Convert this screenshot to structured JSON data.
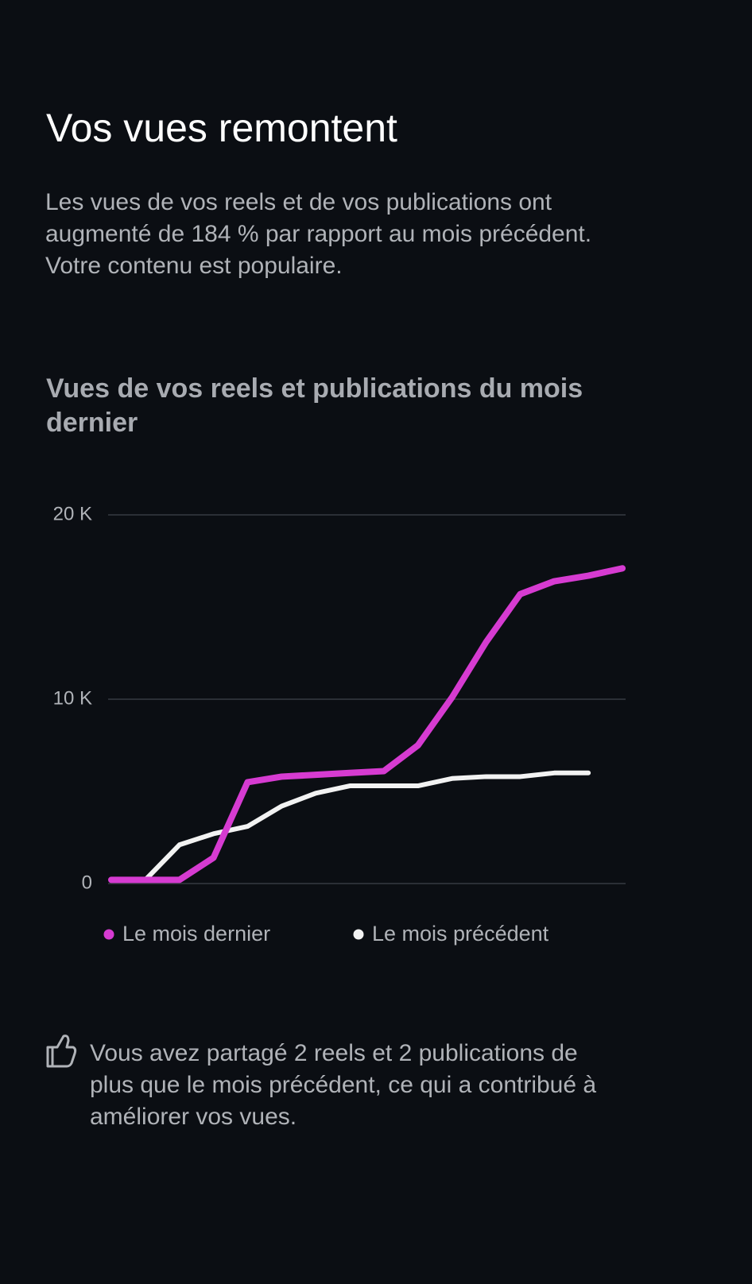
{
  "header": {
    "title": "Vos vues remontent",
    "description": [
      "Les vues de vos reels et de vos publications ont",
      "augmenté de 184 % par rapport au mois précédent.",
      "Votre contenu est populaire."
    ]
  },
  "chart_data": {
    "type": "line",
    "title": [
      "Vues de vos reels et publications du mois",
      "dernier"
    ],
    "categories": [
      null,
      null,
      null,
      null,
      null,
      null,
      null,
      null,
      null,
      null,
      null,
      null,
      null,
      null,
      null,
      null
    ],
    "series": [
      {
        "name": "Le mois dernier",
        "color": "#d63bd1",
        "values": [
          200,
          200,
          200,
          1400,
          5500,
          5800,
          5900,
          6000,
          6100,
          7500,
          10100,
          13100,
          15700,
          16400,
          16700,
          17100
        ]
      },
      {
        "name": "Le mois précédent",
        "color": "#f2f2f2",
        "values": [
          200,
          200,
          2100,
          2700,
          3100,
          4200,
          4900,
          5300,
          5300,
          5300,
          5700,
          5800,
          5800,
          6000,
          6000,
          null
        ]
      }
    ],
    "ylim": [
      0,
      20000
    ],
    "yticks": [
      0,
      {
        "value": 10000,
        "label": "10 K"
      },
      {
        "value": 20000,
        "label": "20 K"
      }
    ],
    "grid": true
  },
  "footer": {
    "note": [
      "Vous avez partagé 2 reels et 2 publications de",
      "plus que le mois précédent, ce qui a contribué à",
      "améliorer vos vues."
    ]
  }
}
